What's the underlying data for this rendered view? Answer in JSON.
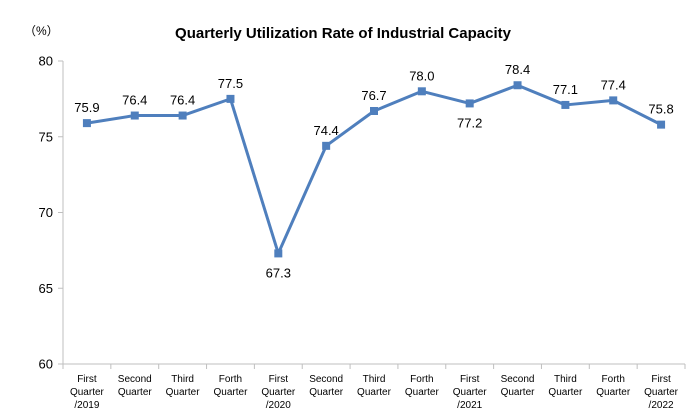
{
  "chart_data": {
    "type": "line",
    "title": "Quarterly Utilization Rate of Industrial Capacity",
    "unit_label": "（%）",
    "xlabel": "",
    "ylabel": "",
    "ylim": [
      60,
      80
    ],
    "yticks": [
      60,
      65,
      70,
      75,
      80
    ],
    "grid": false,
    "legend": "none",
    "categories": [
      [
        "First",
        "Quarter",
        "/2019"
      ],
      [
        "Second",
        "Quarter"
      ],
      [
        "Third",
        "Quarter"
      ],
      [
        "Forth",
        "Quarter"
      ],
      [
        "First",
        "Quarter",
        "/2020"
      ],
      [
        "Second",
        "Quarter"
      ],
      [
        "Third",
        "Quarter"
      ],
      [
        "Forth",
        "Quarter"
      ],
      [
        "First",
        "Quarter",
        "/2021"
      ],
      [
        "Second",
        "Quarter"
      ],
      [
        "Third",
        "Quarter"
      ],
      [
        "Forth",
        "Quarter"
      ],
      [
        "First",
        "Quarter",
        "/2022"
      ]
    ],
    "series": [
      {
        "values": [
          75.9,
          76.4,
          76.4,
          77.5,
          67.3,
          74.4,
          76.7,
          78.0,
          77.2,
          78.4,
          77.1,
          77.4,
          75.8
        ],
        "labels": [
          "75.9",
          "76.4",
          "76.4",
          "77.5",
          "67.3",
          "74.4",
          "76.7",
          "78.0",
          "77.2",
          "78.4",
          "77.1",
          "77.4",
          "75.8"
        ],
        "label_positions": [
          "above",
          "above",
          "above",
          "above",
          "below",
          "above",
          "above",
          "above",
          "below",
          "above",
          "above",
          "above",
          "above"
        ],
        "color": "#4f7fbd"
      }
    ],
    "colors": {
      "line": "#4f7fbd",
      "axis": "#bfbfbf",
      "text": "#000000"
    }
  }
}
